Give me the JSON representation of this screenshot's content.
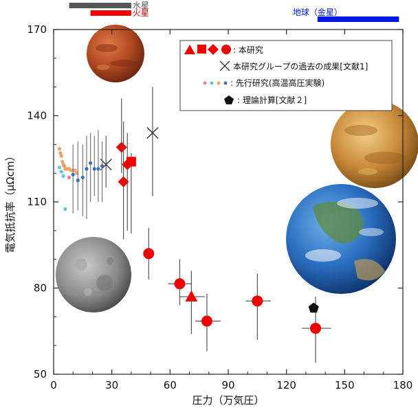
{
  "chart_data": {
    "type": "scatter",
    "xlabel": "圧力（万気圧）",
    "ylabel": "電気抵抗率（μΩcm）",
    "xlim": [
      0,
      180
    ],
    "ylim": [
      50,
      170
    ],
    "xticks": [
      "0",
      "30",
      "60",
      "90",
      "120",
      "150",
      "180"
    ],
    "yticks": [
      "50",
      "80",
      "110",
      "140",
      "170"
    ],
    "pressure_ranges": [
      {
        "name": "水星",
        "x": [
          8,
          40
        ],
        "color": "#555555"
      },
      {
        "name": "火星",
        "x": [
          19,
          40
        ],
        "color": "#ee0000"
      },
      {
        "name": "地球（金星）",
        "x": [
          136,
          178
        ],
        "color": "#0018e0"
      }
    ],
    "legend": [
      {
        "marker": "red-shapes",
        "label": ": 本研究"
      },
      {
        "marker": "cross",
        "label": "本研究グループの過去の成果[文献1]"
      },
      {
        "marker": "dots",
        "label": ": 先行研究(高温高圧実験)"
      },
      {
        "marker": "pentagon",
        "label": ": 理論計算[文献２]"
      }
    ],
    "series": [
      {
        "name": "本研究",
        "color": "#ee0000",
        "points": [
          {
            "x": 35,
            "y": 129,
            "shape": "diamond",
            "yerr": [
              120,
              146
            ]
          },
          {
            "x": 36,
            "y": 117,
            "shape": "diamond",
            "yerr": [
              97,
              138
            ]
          },
          {
            "x": 38,
            "y": 123,
            "shape": "diamond",
            "yerr": [
              100,
              134
            ]
          },
          {
            "x": 40,
            "y": 124,
            "shape": "square",
            "yerr": [
              99,
              127
            ]
          },
          {
            "x": 49,
            "y": 92,
            "shape": "circle",
            "yerr": [
              83,
              101
            ]
          },
          {
            "x": 65,
            "y": 81.5,
            "shape": "circle",
            "xerr": [
              59,
              71
            ],
            "yerr": [
              74,
              90
            ]
          },
          {
            "x": 71,
            "y": 77,
            "shape": "triangle",
            "xerr": [
              65,
              78
            ],
            "yerr": [
              64,
              86
            ]
          },
          {
            "x": 79,
            "y": 68.5,
            "shape": "circle",
            "xerr": [
              73,
              86
            ],
            "yerr": [
              58,
              78
            ]
          },
          {
            "x": 105,
            "y": 75.5,
            "shape": "circle",
            "xerr": [
              99,
              112
            ],
            "yerr": [
              62,
              85
            ]
          },
          {
            "x": 135,
            "y": 66,
            "shape": "circle",
            "xerr": [
              128,
              143
            ],
            "yerr": [
              54,
              77
            ]
          }
        ]
      },
      {
        "name": "本研究グループの過去の成果[文献1]",
        "color": "#333333",
        "points": [
          {
            "x": 27,
            "y": 123,
            "shape": "cross",
            "yerr": [
              115,
              133
            ]
          },
          {
            "x": 51,
            "y": 134,
            "shape": "cross",
            "yerr": [
              112,
              150
            ]
          }
        ]
      },
      {
        "name": "先行研究(高温高圧実験)",
        "color": "#3b6fb0",
        "points": [
          {
            "x": 3,
            "y": 122,
            "color": "#5ec4e0"
          },
          {
            "x": 4,
            "y": 120.5,
            "color": "#5ec4e0"
          },
          {
            "x": 5,
            "y": 119,
            "color": "#5ec4e0"
          },
          {
            "x": 6,
            "y": 107.5,
            "color": "#5ec4e0"
          },
          {
            "x": 3,
            "y": 128.5,
            "color": "#f0a060"
          },
          {
            "x": 3.5,
            "y": 127,
            "color": "#f0a060"
          },
          {
            "x": 4,
            "y": 126,
            "color": "#f0a060"
          },
          {
            "x": 4.5,
            "y": 124,
            "color": "#f0a060"
          },
          {
            "x": 5,
            "y": 123,
            "color": "#f0a060"
          },
          {
            "x": 5.5,
            "y": 122.5,
            "color": "#f0a060"
          },
          {
            "x": 6,
            "y": 121.5,
            "color": "#f0a060"
          },
          {
            "x": 7,
            "y": 121.5,
            "color": "#f0a060"
          },
          {
            "x": 8,
            "y": 121.5,
            "color": "#f0a060"
          },
          {
            "x": 9,
            "y": 121,
            "color": "#f0a060"
          },
          {
            "x": 10,
            "y": 121,
            "color": "#f0a060"
          },
          {
            "x": 11,
            "y": 121,
            "color": "#f0a060"
          },
          {
            "x": 12,
            "y": 120,
            "color": "#f0a060"
          },
          {
            "x": 8,
            "y": 118.5,
            "color": "#e87a9a"
          },
          {
            "x": 10,
            "y": 119.5,
            "color": "#3b6fb0",
            "yerr": [
              106,
              130
            ]
          },
          {
            "x": 12.5,
            "y": 117.5,
            "color": "#3b6fb0",
            "yerr": [
              107,
              131
            ]
          },
          {
            "x": 15,
            "y": 118.5,
            "color": "#3b6fb0",
            "yerr": [
              105,
              130
            ]
          },
          {
            "x": 17,
            "y": 121.5,
            "color": "#3b6fb0",
            "yerr": [
              104,
              133
            ]
          },
          {
            "x": 19,
            "y": 123.5,
            "color": "#3b6fb0",
            "yerr": [
              110,
              134
            ]
          },
          {
            "x": 21,
            "y": 121.5,
            "color": "#3b6fb0",
            "yerr": [
              112,
              133
            ]
          },
          {
            "x": 23,
            "y": 121.5,
            "color": "#3b6fb0",
            "yerr": [
              110,
              135
            ]
          },
          {
            "x": 25,
            "y": 122.5,
            "color": "#3b6fb0",
            "yerr": [
              110,
              131
            ]
          }
        ]
      },
      {
        "name": "理論計算[文献２]",
        "color": "#111111",
        "points": [
          {
            "x": 134,
            "y": 73,
            "shape": "pentagon"
          }
        ]
      }
    ],
    "planet_images": [
      "mars",
      "venus",
      "earth",
      "mercury"
    ]
  }
}
